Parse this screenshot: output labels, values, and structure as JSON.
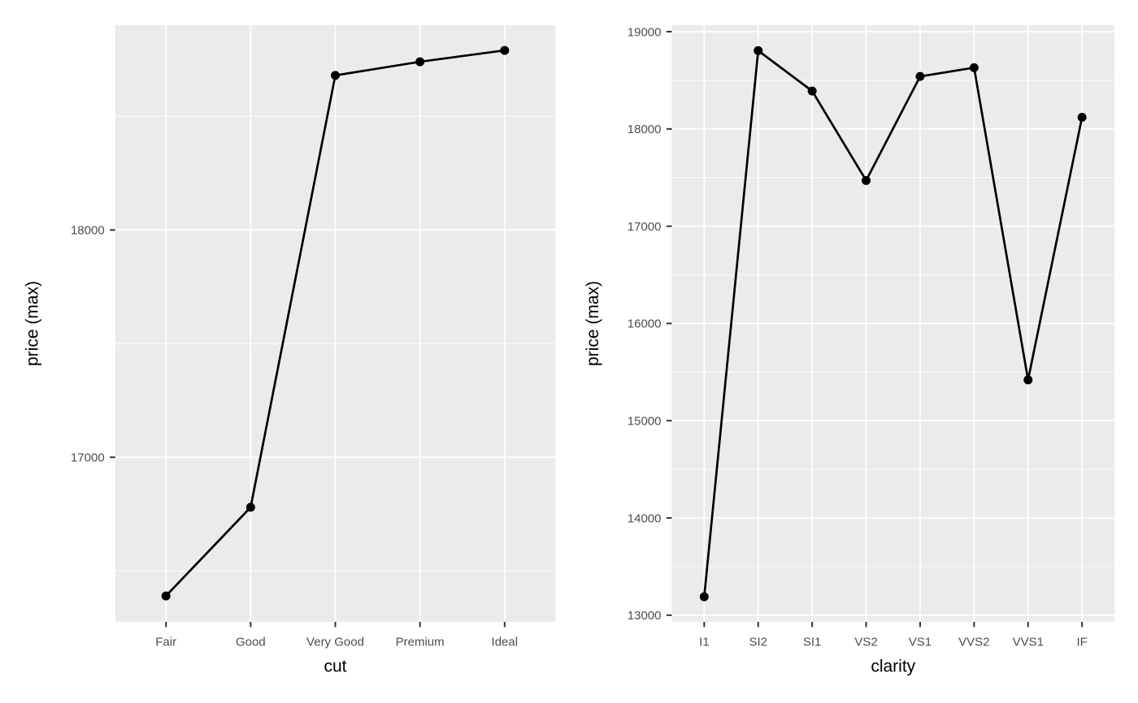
{
  "figure": {
    "background": "#FFFFFF",
    "panel_background": "#EBEBEB",
    "grid_color": "#FFFFFF",
    "line_color": "#000000",
    "point_color": "#000000",
    "tick_label_color": "#4D4D4D",
    "axis_title_color": "#000000",
    "tick_mark_color": "#333333"
  },
  "chart_data": [
    {
      "type": "line",
      "xlabel": "cut",
      "ylabel": "price (max)",
      "categories": [
        "Fair",
        "Good",
        "Very Good",
        "Premium",
        "Ideal"
      ],
      "values": [
        16390,
        16780,
        18680,
        18740,
        18790
      ],
      "y_ticks": [
        17000,
        18000
      ],
      "ylim": [
        16276,
        18901
      ],
      "minor_grid_step": 500,
      "grid": "horizontal major+minor, vertical major per category",
      "legend": "none",
      "markers": "filled circles on solid black line"
    },
    {
      "type": "line",
      "xlabel": "clarity",
      "ylabel": "price (max)",
      "categories": [
        "I1",
        "SI2",
        "SI1",
        "VS2",
        "VS1",
        "VVS2",
        "VVS1",
        "IF"
      ],
      "values": [
        13190,
        18805,
        18390,
        17470,
        18540,
        18630,
        15420,
        18120
      ],
      "y_ticks": [
        13000,
        14000,
        15000,
        16000,
        17000,
        18000,
        19000
      ],
      "ylim": [
        12932,
        19067
      ],
      "minor_grid_step": 500,
      "grid": "horizontal major+minor, vertical major per category",
      "legend": "none",
      "markers": "filled circles on solid black line"
    }
  ]
}
